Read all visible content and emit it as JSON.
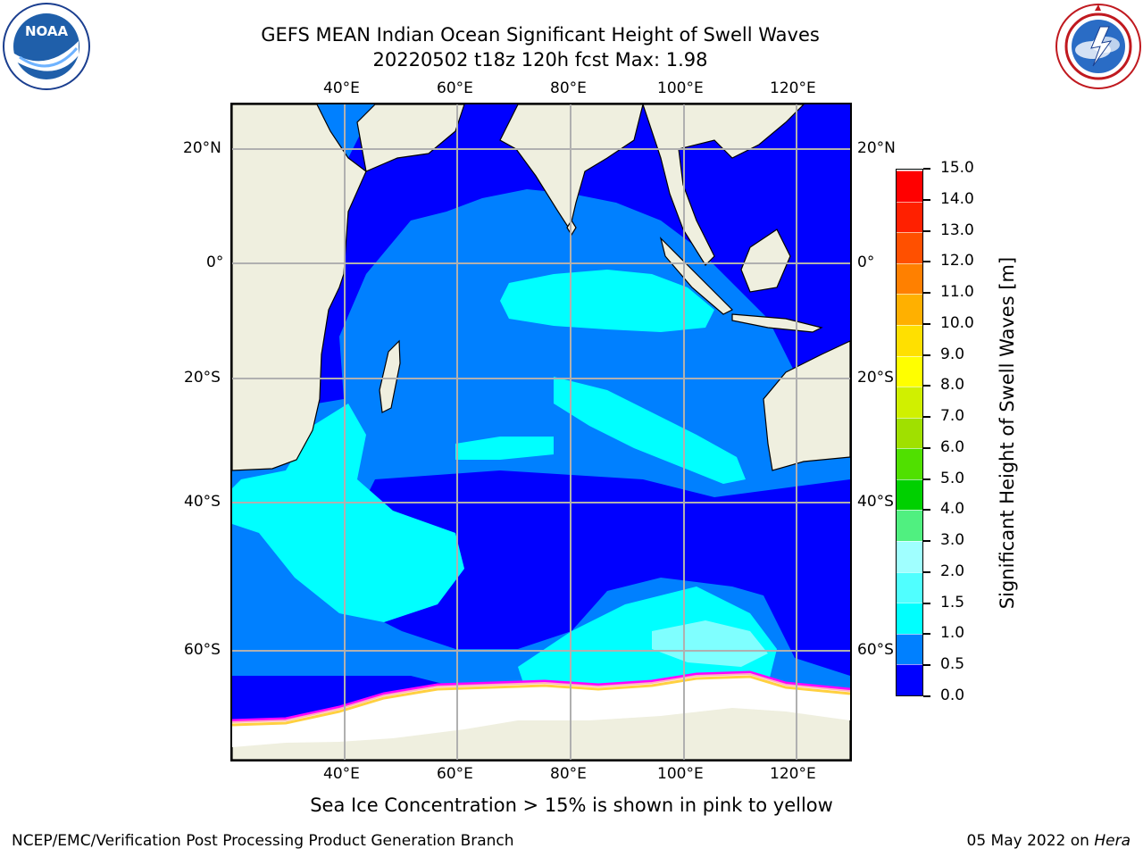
{
  "header": {
    "title_line1": "GEFS MEAN Indian Ocean Significant Height of Swell Waves",
    "title_line2": "20220502 t18z 120h fcst   Max: 1.98"
  },
  "logos": {
    "left": {
      "name": "NOAA",
      "text": "NOAA",
      "ring_text": "NATIONAL OCEANIC AND ATMOSPHERIC ADMINISTRATION · U.S. DEPARTMENT OF COMMERCE"
    },
    "right": {
      "name": "National Weather Service",
      "ring_text": "NATIONAL WEATHER SERVICE"
    }
  },
  "map": {
    "lon_labels": [
      "40°E",
      "60°E",
      "80°E",
      "100°E",
      "120°E"
    ],
    "lat_labels": [
      "20°N",
      "0°",
      "20°S",
      "40°S",
      "60°S"
    ],
    "grid": true,
    "colors": {
      "land": "#efefdf",
      "ice": "#ffffff",
      "level_0_05": "#0000ff",
      "level_05_10": "#0080ff",
      "level_10_15": "#00ffff",
      "level_15_20": "#7fffff",
      "ice_edge": [
        "#ff00ff",
        "#ffb0c0",
        "#ffd040"
      ]
    }
  },
  "colorbar": {
    "label": "Significant Height of Swell Waves [m]",
    "ticks": [
      "0.0",
      "0.5",
      "1.0",
      "1.5",
      "2.0",
      "3.0",
      "4.0",
      "5.0",
      "6.0",
      "7.0",
      "8.0",
      "9.0",
      "10.0",
      "11.0",
      "12.0",
      "13.0",
      "14.0",
      "15.0"
    ],
    "colors": [
      "#0000ff",
      "#0080ff",
      "#00ffff",
      "#50ffff",
      "#a0ffff",
      "#50f080",
      "#00d000",
      "#50e000",
      "#a0e000",
      "#d0f000",
      "#ffff00",
      "#ffe000",
      "#ffb000",
      "#ff8000",
      "#ff5000",
      "#ff2000",
      "#ff0000"
    ]
  },
  "footer": {
    "caption": "Sea Ice Concentration > 15% is shown in pink to yellow",
    "left": "NCEP/EMC/Verification Post Processing Product Generation Branch",
    "right_prefix": "05 May 2022 on ",
    "right_host": "Hera"
  }
}
